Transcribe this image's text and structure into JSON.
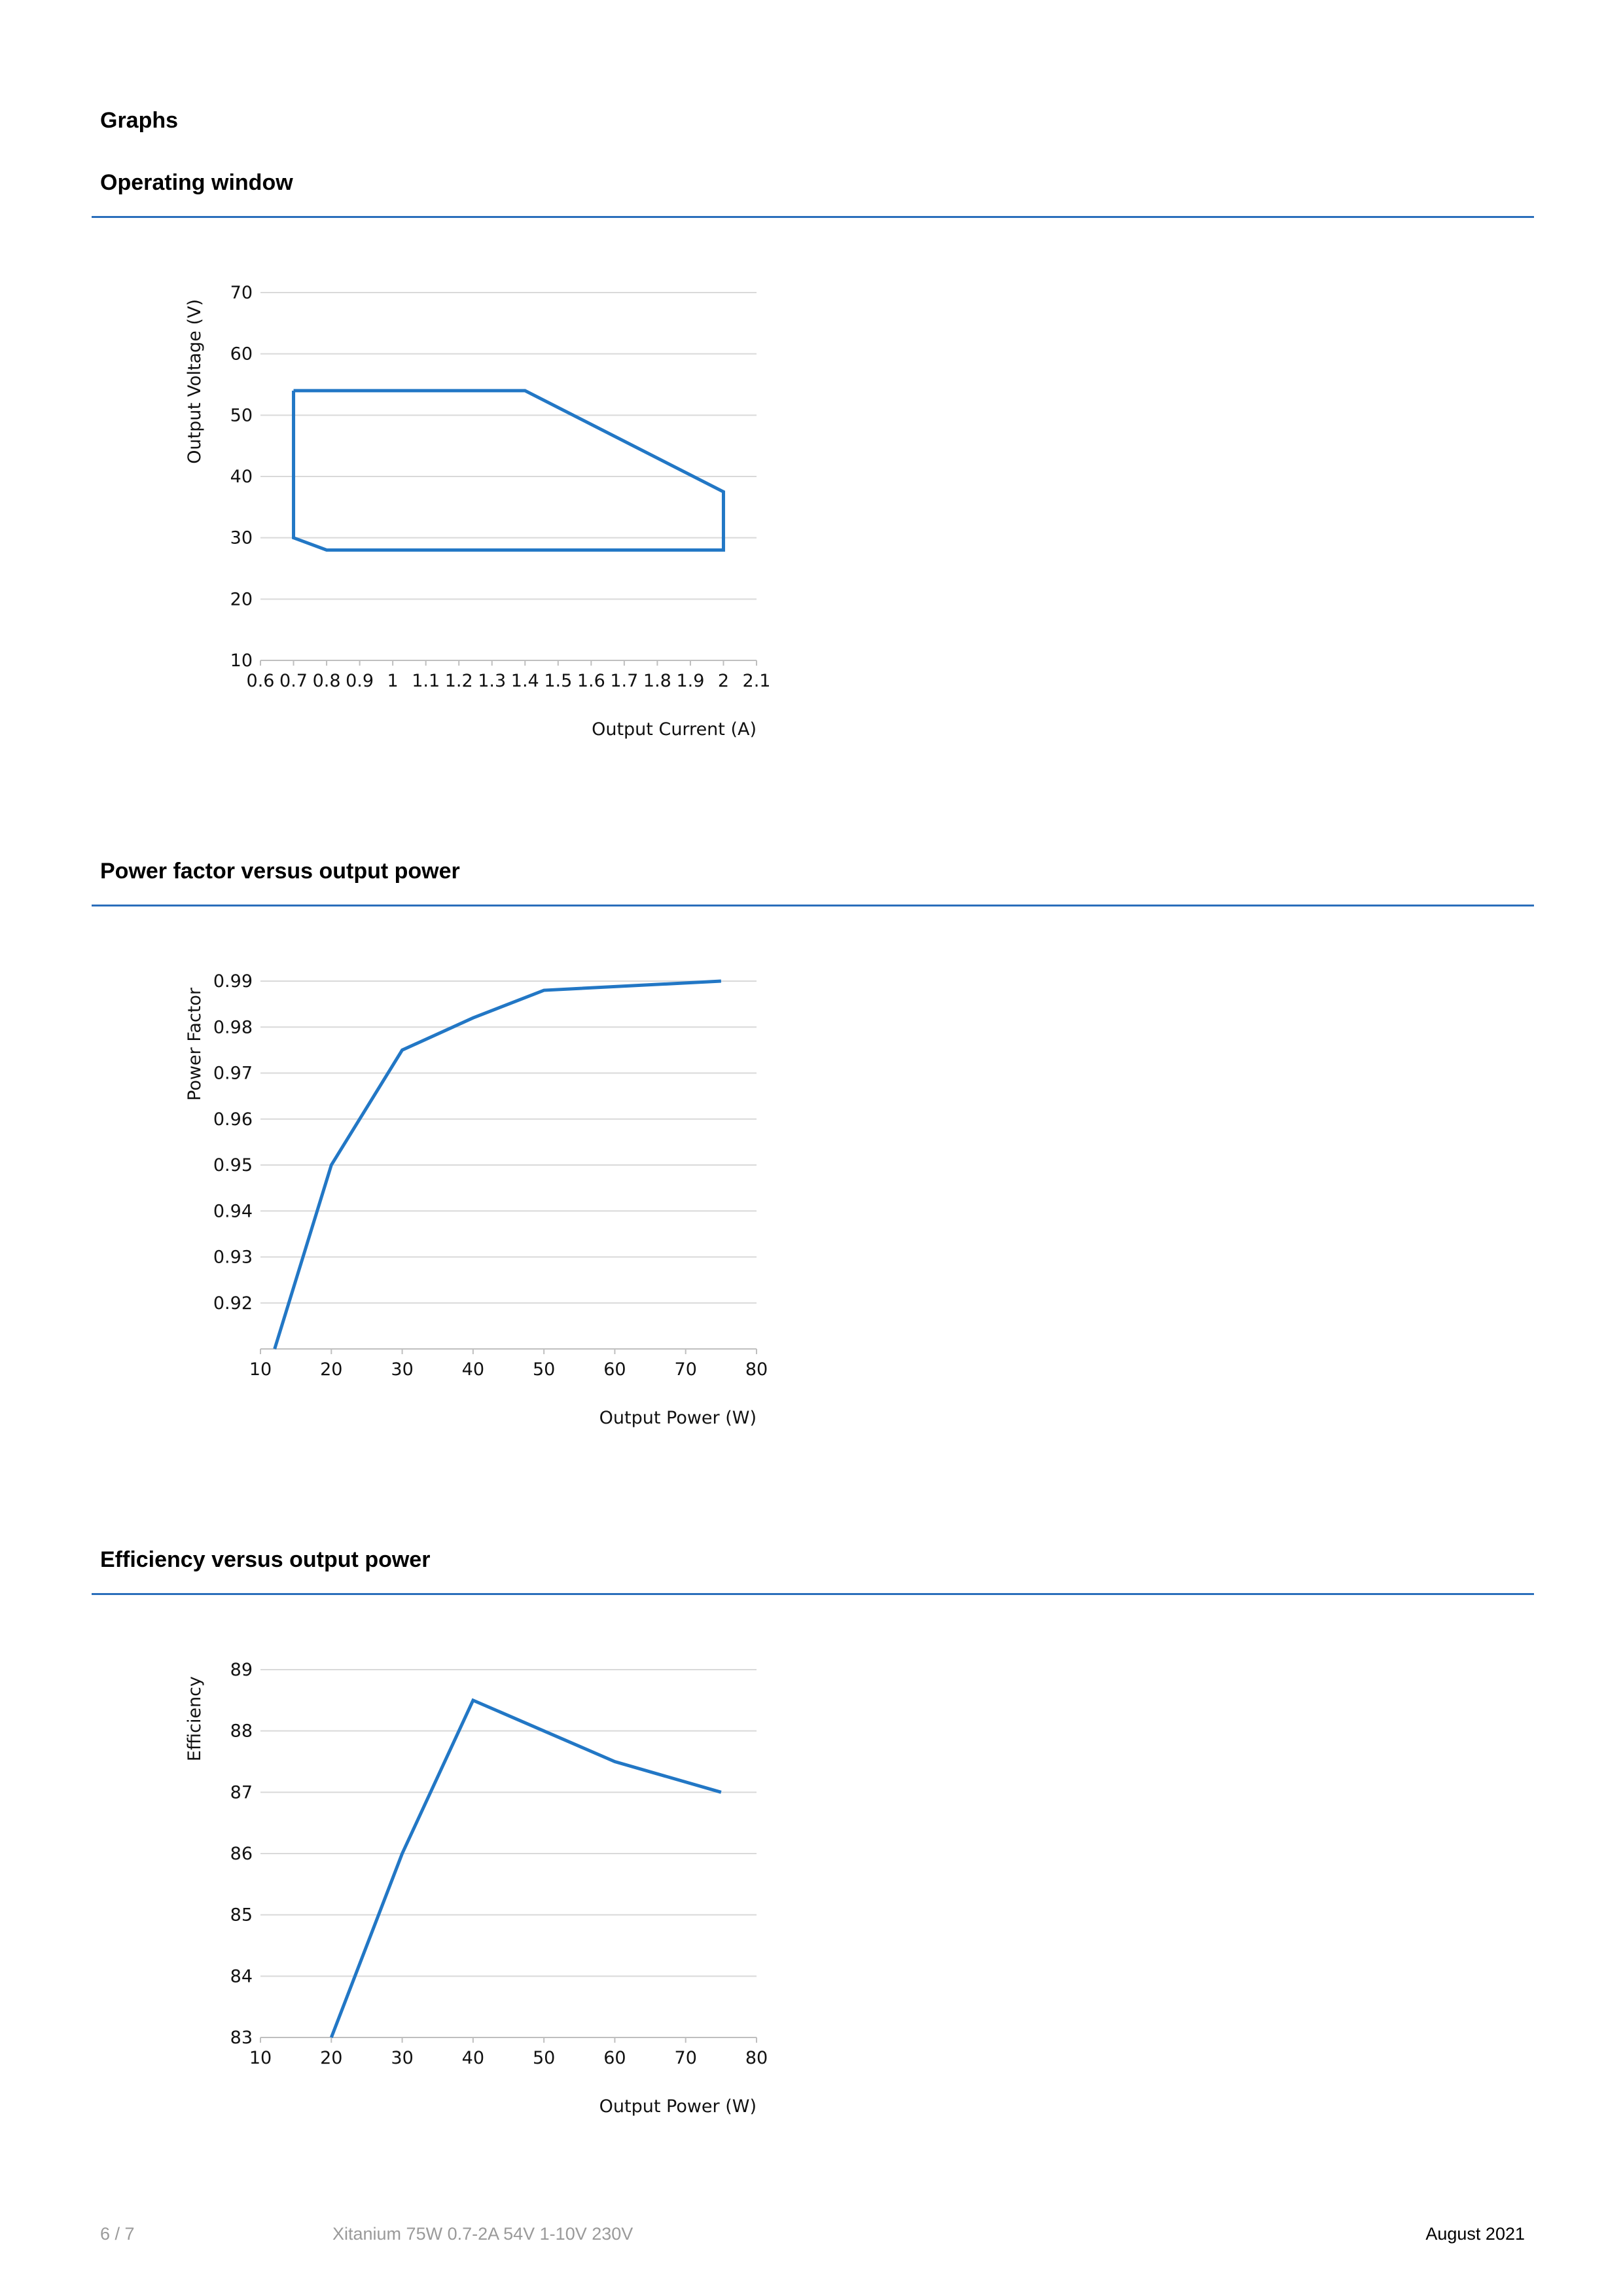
{
  "page": {
    "section_title": "Graphs",
    "footer": {
      "page_number": "6 / 7",
      "product": "Xitanium 75W 0.7-2A 54V 1-10V 230V",
      "date": "August 2021"
    }
  },
  "colors": {
    "accent": "#2a6ebb",
    "series": "#2277c5"
  },
  "sections": [
    {
      "title": "Operating window"
    },
    {
      "title": "Power factor versus output power"
    },
    {
      "title": "Efficiency versus output power"
    }
  ],
  "chart_data": [
    {
      "type": "line",
      "title": "Operating window",
      "xlabel": "Output Current (A)",
      "ylabel": "Output Voltage (V)",
      "xlim": [
        0.6,
        2.1
      ],
      "ylim": [
        10,
        70
      ],
      "xticks": [
        0.6,
        0.7,
        0.8,
        0.9,
        1,
        1.1,
        1.2,
        1.3,
        1.4,
        1.5,
        1.6,
        1.7,
        1.8,
        1.9,
        2,
        2.1
      ],
      "yticks": [
        10,
        20,
        30,
        40,
        50,
        60,
        70
      ],
      "grid": true,
      "closed": true,
      "series": [
        {
          "x": [
            0.7,
            1.4,
            2.0,
            2.0,
            0.8,
            0.7,
            0.7
          ],
          "y": [
            54,
            54,
            37.5,
            28,
            28,
            30,
            54
          ]
        }
      ]
    },
    {
      "type": "line",
      "title": "Power factor versus output power",
      "xlabel": "Output Power (W)",
      "ylabel": "Power Factor",
      "xlim": [
        10,
        80
      ],
      "ylim": [
        0.91,
        0.99
      ],
      "xticks": [
        10,
        20,
        30,
        40,
        50,
        60,
        70,
        80
      ],
      "yticks": [
        0.92,
        0.93,
        0.94,
        0.95,
        0.96,
        0.97,
        0.98,
        0.99
      ],
      "grid": true,
      "series": [
        {
          "x": [
            12,
            20,
            30,
            40,
            50,
            75
          ],
          "y": [
            0.91,
            0.95,
            0.975,
            0.982,
            0.988,
            0.99
          ]
        }
      ]
    },
    {
      "type": "line",
      "title": "Efficiency versus output power",
      "xlabel": "Output Power (W)",
      "ylabel": "Efficiency",
      "xlim": [
        10,
        80
      ],
      "ylim": [
        83,
        89
      ],
      "xticks": [
        10,
        20,
        30,
        40,
        50,
        60,
        70,
        80
      ],
      "yticks": [
        83,
        84,
        85,
        86,
        87,
        88,
        89
      ],
      "grid": true,
      "series": [
        {
          "x": [
            20,
            30,
            40,
            50,
            60,
            75
          ],
          "y": [
            83,
            86,
            88.5,
            88,
            87.5,
            87
          ]
        }
      ]
    }
  ]
}
